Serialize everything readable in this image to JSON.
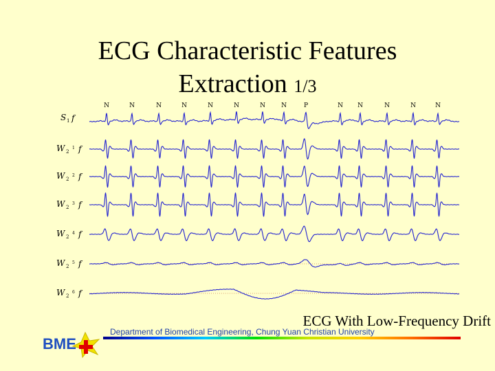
{
  "slide": {
    "title_line1": "ECG Characteristic Features",
    "title_line2": "Extraction",
    "title_suffix": "1/3",
    "caption": "ECG With Low-Frequency Drift",
    "footer": "Department of Biomedical Engineering, Chung Yuan Christian University",
    "logo_text": "BME"
  },
  "colors": {
    "background": "#FFFFCC",
    "trace": "#2020D0",
    "dotted_baseline": "#D08050",
    "logo_blue": "#1F4FC0",
    "logo_red": "#E00000",
    "logo_yellow": "#F2E200"
  },
  "icons": [
    "bme-logo-icon"
  ],
  "chart_data": {
    "type": "line",
    "beat_labels": [
      "N",
      "N",
      "N",
      "N",
      "N",
      "N",
      "N",
      "N",
      "P",
      "N",
      "N",
      "N",
      "N",
      "N"
    ],
    "traces": [
      {
        "label_main": "S",
        "label_sub": "1",
        "label_f": "f"
      },
      {
        "label_main": "W",
        "label_sub": "2",
        "label_sup": "1",
        "label_f": "f"
      },
      {
        "label_main": "W",
        "label_sub": "2",
        "label_sup": "2",
        "label_f": "f"
      },
      {
        "label_main": "W",
        "label_sub": "2",
        "label_sup": "3",
        "label_f": "f"
      },
      {
        "label_main": "W",
        "label_sub": "2",
        "label_sup": "4",
        "label_f": "f"
      },
      {
        "label_main": "W",
        "label_sub": "2",
        "label_sup": "5",
        "label_f": "f"
      },
      {
        "label_main": "W",
        "label_sub": "2",
        "label_sup": "6",
        "label_f": "f"
      }
    ],
    "grid": false,
    "legend": "none"
  }
}
